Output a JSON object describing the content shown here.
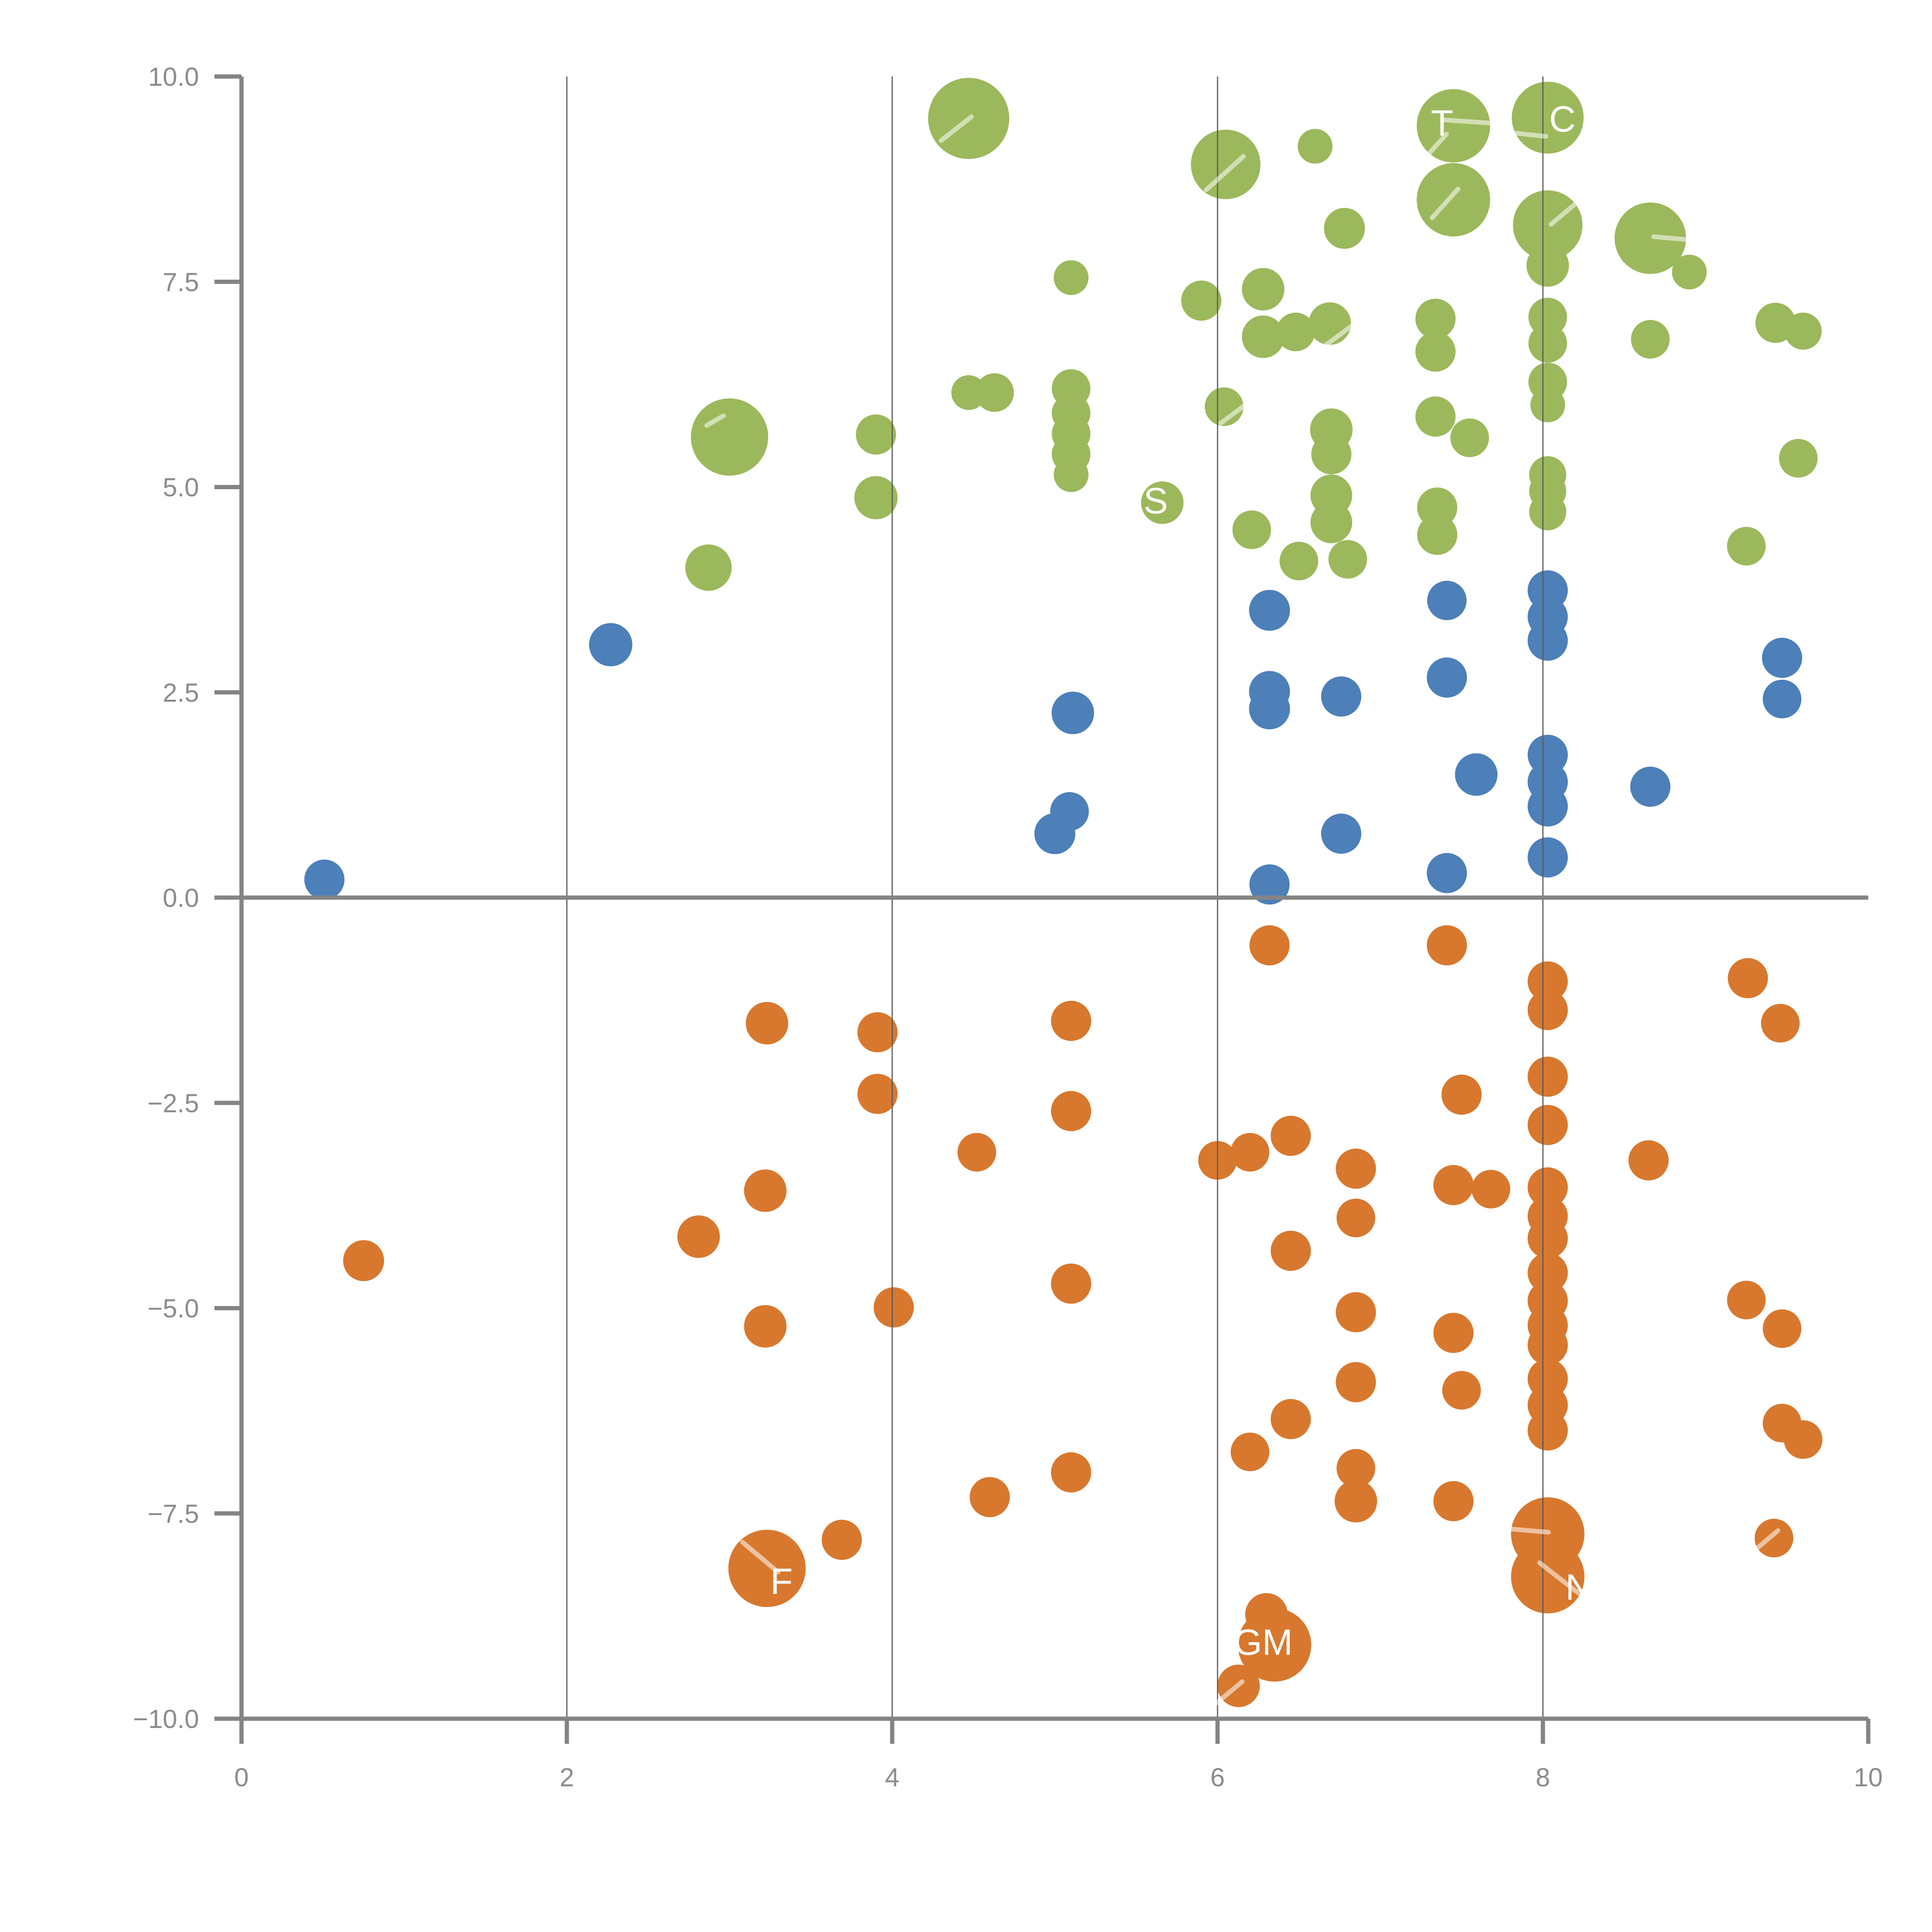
{
  "chart_data": {
    "type": "scatter",
    "title": "",
    "xlabel": "",
    "ylabel": "",
    "xlim": [
      0,
      10
    ],
    "ylim": [
      -10,
      10
    ],
    "grid": "vertical-only",
    "x_ticks": [
      {
        "v": 0,
        "label": "0"
      },
      {
        "v": 2,
        "label": "2"
      },
      {
        "v": 4,
        "label": "4"
      },
      {
        "v": 6,
        "label": "6"
      },
      {
        "v": 8,
        "label": "8"
      },
      {
        "v": 10,
        "label": "10"
      }
    ],
    "y_ticks": [
      {
        "v": 10,
        "label": "10.0"
      },
      {
        "v": 7.5,
        "label": "7.5"
      },
      {
        "v": 5,
        "label": "5.0"
      },
      {
        "v": 2.5,
        "label": "2.5"
      },
      {
        "v": 0,
        "label": "0.0"
      },
      {
        "v": -2.5,
        "label": "−2.5"
      },
      {
        "v": -5,
        "label": "−5.0"
      },
      {
        "v": -7.5,
        "label": "−7.5"
      },
      {
        "v": -10,
        "label": "−10.0"
      }
    ],
    "zero_line": 0,
    "colors": {
      "green": "#9cb85c",
      "blue": "#4d7fb9",
      "orange": "#d8782e",
      "axis": "#848484",
      "grid": "#5a5a5a",
      "tick_text": "#8c8c8c",
      "label_text": "#ffffff",
      "streak": "#ffffff"
    },
    "series": [
      {
        "name": "green",
        "color": "#9cb85c",
        "points": [
          [
            4.47,
            9.49,
            21
          ],
          [
            6.05,
            8.93,
            18
          ],
          [
            6.6,
            9.15,
            9
          ],
          [
            7.45,
            9.4,
            19
          ],
          [
            8.03,
            9.5,
            18.6
          ],
          [
            7.45,
            8.5,
            19
          ],
          [
            8.03,
            8.19,
            18
          ],
          [
            8.03,
            7.7,
            11
          ],
          [
            8.66,
            8.03,
            18.5
          ],
          [
            8.9,
            7.62,
            9
          ],
          [
            8.66,
            6.8,
            10
          ],
          [
            6.78,
            8.15,
            10.6
          ],
          [
            5.9,
            7.27,
            10.4
          ],
          [
            5.1,
            7.55,
            9
          ],
          [
            6.28,
            7.41,
            11
          ],
          [
            6.28,
            6.83,
            11
          ],
          [
            6.48,
            6.89,
            10
          ],
          [
            6.69,
            6.99,
            11
          ],
          [
            7.34,
            7.05,
            10.4
          ],
          [
            7.34,
            6.65,
            10.4
          ],
          [
            8.03,
            7.07,
            10
          ],
          [
            8.03,
            6.75,
            10
          ],
          [
            9.43,
            7.0,
            10.4
          ],
          [
            9.6,
            6.9,
            9.6
          ],
          [
            5.1,
            6.2,
            10
          ],
          [
            5.1,
            5.9,
            10
          ],
          [
            5.1,
            5.65,
            10
          ],
          [
            5.1,
            5.4,
            10
          ],
          [
            5.1,
            5.15,
            9
          ],
          [
            4.47,
            6.15,
            9
          ],
          [
            4.63,
            6.15,
            10
          ],
          [
            3.0,
            5.61,
            20
          ],
          [
            3.9,
            5.64,
            10.4
          ],
          [
            3.9,
            4.87,
            11.2
          ],
          [
            6.04,
            5.98,
            10
          ],
          [
            7.34,
            5.86,
            10.4
          ],
          [
            7.55,
            5.6,
            10
          ],
          [
            6.7,
            5.7,
            11
          ],
          [
            6.7,
            5.4,
            10.4
          ],
          [
            8.03,
            6.28,
            10
          ],
          [
            8.03,
            6.0,
            9
          ],
          [
            8.03,
            5.15,
            9.6
          ],
          [
            8.03,
            4.95,
            9.6
          ],
          [
            8.03,
            4.7,
            9.6
          ],
          [
            5.66,
            4.81,
            11
          ],
          [
            9.57,
            5.35,
            10
          ],
          [
            6.7,
            4.9,
            10.8
          ],
          [
            6.7,
            4.57,
            10.8
          ],
          [
            6.21,
            4.48,
            10
          ],
          [
            6.5,
            4.1,
            10
          ],
          [
            6.8,
            4.12,
            10
          ],
          [
            2.87,
            4.02,
            12
          ],
          [
            7.35,
            4.75,
            10.4
          ],
          [
            7.35,
            4.42,
            10.4
          ],
          [
            9.25,
            4.28,
            10
          ]
        ]
      },
      {
        "name": "blue",
        "color": "#4d7fb9",
        "points": [
          [
            2.27,
            3.08,
            11.2
          ],
          [
            6.32,
            3.5,
            10.6
          ],
          [
            7.41,
            3.62,
            10.2
          ],
          [
            8.03,
            3.74,
            10.4
          ],
          [
            8.03,
            3.42,
            10.4
          ],
          [
            8.03,
            3.13,
            10.4
          ],
          [
            6.32,
            2.51,
            10.6
          ],
          [
            6.32,
            2.3,
            10.6
          ],
          [
            6.76,
            2.45,
            10.4
          ],
          [
            7.41,
            2.68,
            10.4
          ],
          [
            9.47,
            2.92,
            10.4
          ],
          [
            9.47,
            2.42,
            10
          ],
          [
            5.11,
            2.25,
            11
          ],
          [
            8.03,
            1.74,
            10.4
          ],
          [
            8.03,
            1.41,
            10.4
          ],
          [
            8.03,
            1.11,
            10.4
          ],
          [
            8.66,
            1.35,
            10.4
          ],
          [
            7.59,
            1.5,
            11
          ],
          [
            5.09,
            1.05,
            10
          ],
          [
            5.0,
            0.78,
            10.6
          ],
          [
            6.76,
            0.78,
            10.4
          ],
          [
            6.32,
            0.16,
            10.4
          ],
          [
            7.41,
            0.3,
            10.4
          ],
          [
            8.03,
            0.49,
            10.4
          ],
          [
            0.51,
            0.22,
            10.4
          ]
        ]
      },
      {
        "name": "orange",
        "color": "#d8782e",
        "points": [
          [
            6.32,
            -0.58,
            10.4
          ],
          [
            7.41,
            -0.58,
            10.4
          ],
          [
            3.23,
            -1.53,
            11
          ],
          [
            3.91,
            -1.64,
            10.4
          ],
          [
            5.1,
            -1.5,
            10.4
          ],
          [
            8.03,
            -1.02,
            10.4
          ],
          [
            8.03,
            -1.37,
            10.4
          ],
          [
            9.26,
            -0.98,
            10.4
          ],
          [
            9.46,
            -1.53,
            10
          ],
          [
            3.91,
            -2.39,
            10.4
          ],
          [
            5.1,
            -2.6,
            10.4
          ],
          [
            8.03,
            -2.18,
            10.4
          ],
          [
            7.5,
            -2.4,
            10.4
          ],
          [
            8.03,
            -2.77,
            10.4
          ],
          [
            8.65,
            -3.2,
            10.4
          ],
          [
            4.52,
            -3.1,
            10
          ],
          [
            6.0,
            -3.2,
            10
          ],
          [
            6.2,
            -3.1,
            10
          ],
          [
            6.45,
            -2.9,
            10.4
          ],
          [
            6.85,
            -3.3,
            10.4
          ],
          [
            3.22,
            -3.57,
            11
          ],
          [
            7.45,
            -3.5,
            10.4
          ],
          [
            7.68,
            -3.55,
            10
          ],
          [
            8.03,
            -3.53,
            10.4
          ],
          [
            8.03,
            -3.88,
            10.4
          ],
          [
            8.03,
            -4.15,
            10.4
          ],
          [
            2.81,
            -4.13,
            11
          ],
          [
            6.85,
            -3.9,
            10
          ],
          [
            0.75,
            -4.42,
            10.6
          ],
          [
            6.45,
            -4.3,
            10.4
          ],
          [
            8.03,
            -4.57,
            10.4
          ],
          [
            8.03,
            -4.91,
            10.4
          ],
          [
            8.03,
            -5.21,
            10.4
          ],
          [
            8.03,
            -5.45,
            10.4
          ],
          [
            8.03,
            -5.86,
            10.4
          ],
          [
            8.03,
            -6.18,
            10.4
          ],
          [
            8.03,
            -6.49,
            10.4
          ],
          [
            5.1,
            -4.7,
            10.4
          ],
          [
            4.01,
            -4.99,
            10.4
          ],
          [
            9.25,
            -4.9,
            10
          ],
          [
            3.22,
            -5.22,
            11
          ],
          [
            6.85,
            -5.05,
            10.4
          ],
          [
            9.47,
            -5.25,
            10
          ],
          [
            7.45,
            -5.3,
            10.4
          ],
          [
            6.85,
            -5.9,
            10.4
          ],
          [
            7.5,
            -6.0,
            10
          ],
          [
            6.45,
            -6.35,
            10.4
          ],
          [
            6.2,
            -6.75,
            10
          ],
          [
            9.47,
            -6.4,
            10
          ],
          [
            9.6,
            -6.6,
            10
          ],
          [
            5.1,
            -7.0,
            10.4
          ],
          [
            4.6,
            -7.3,
            10.4
          ],
          [
            6.85,
            -6.95,
            10
          ],
          [
            6.85,
            -7.35,
            11
          ],
          [
            7.45,
            -7.35,
            10.4
          ],
          [
            3.69,
            -7.82,
            10.4
          ],
          [
            3.23,
            -8.17,
            20
          ],
          [
            8.03,
            -7.75,
            19
          ],
          [
            8.03,
            -8.27,
            19
          ],
          [
            6.35,
            -9.1,
            19
          ],
          [
            6.3,
            -8.73,
            11
          ],
          [
            6.13,
            -9.6,
            11
          ],
          [
            9.42,
            -7.8,
            10
          ]
        ]
      }
    ],
    "bubble_labels": [
      {
        "text": "T",
        "x": 7.38,
        "y": 9.28
      },
      {
        "text": "C",
        "x": 8.12,
        "y": 9.33
      },
      {
        "text": "S",
        "x": 5.62,
        "y": 4.68
      },
      {
        "text": "GM",
        "x": 6.28,
        "y": -9.22
      },
      {
        "text": "F",
        "x": 3.32,
        "y": -8.48
      },
      {
        "text": "N",
        "x": 8.22,
        "y": -8.55
      }
    ],
    "streaks": [
      [
        4.3,
        9.22,
        38,
        20
      ],
      [
        5.93,
        8.62,
        42,
        26
      ],
      [
        7.4,
        9.47,
        -4,
        26
      ],
      [
        7.83,
        9.31,
        -6,
        16
      ],
      [
        7.28,
        9.02,
        48,
        16
      ],
      [
        7.32,
        8.28,
        48,
        20
      ],
      [
        8.05,
        8.2,
        40,
        18
      ],
      [
        8.68,
        8.05,
        -5,
        22
      ],
      [
        2.86,
        5.75,
        30,
        10
      ],
      [
        6.02,
        5.78,
        36.6,
        95
      ],
      [
        4.06,
        8.45,
        -90,
        12
      ],
      [
        3.08,
        -7.85,
        -40,
        24
      ],
      [
        7.75,
        -7.68,
        -5,
        24
      ],
      [
        7.98,
        -8.1,
        -38,
        26
      ],
      [
        5.97,
        -9.85,
        40,
        20
      ],
      [
        9.3,
        -7.95,
        40,
        16
      ]
    ],
    "legend": null
  }
}
